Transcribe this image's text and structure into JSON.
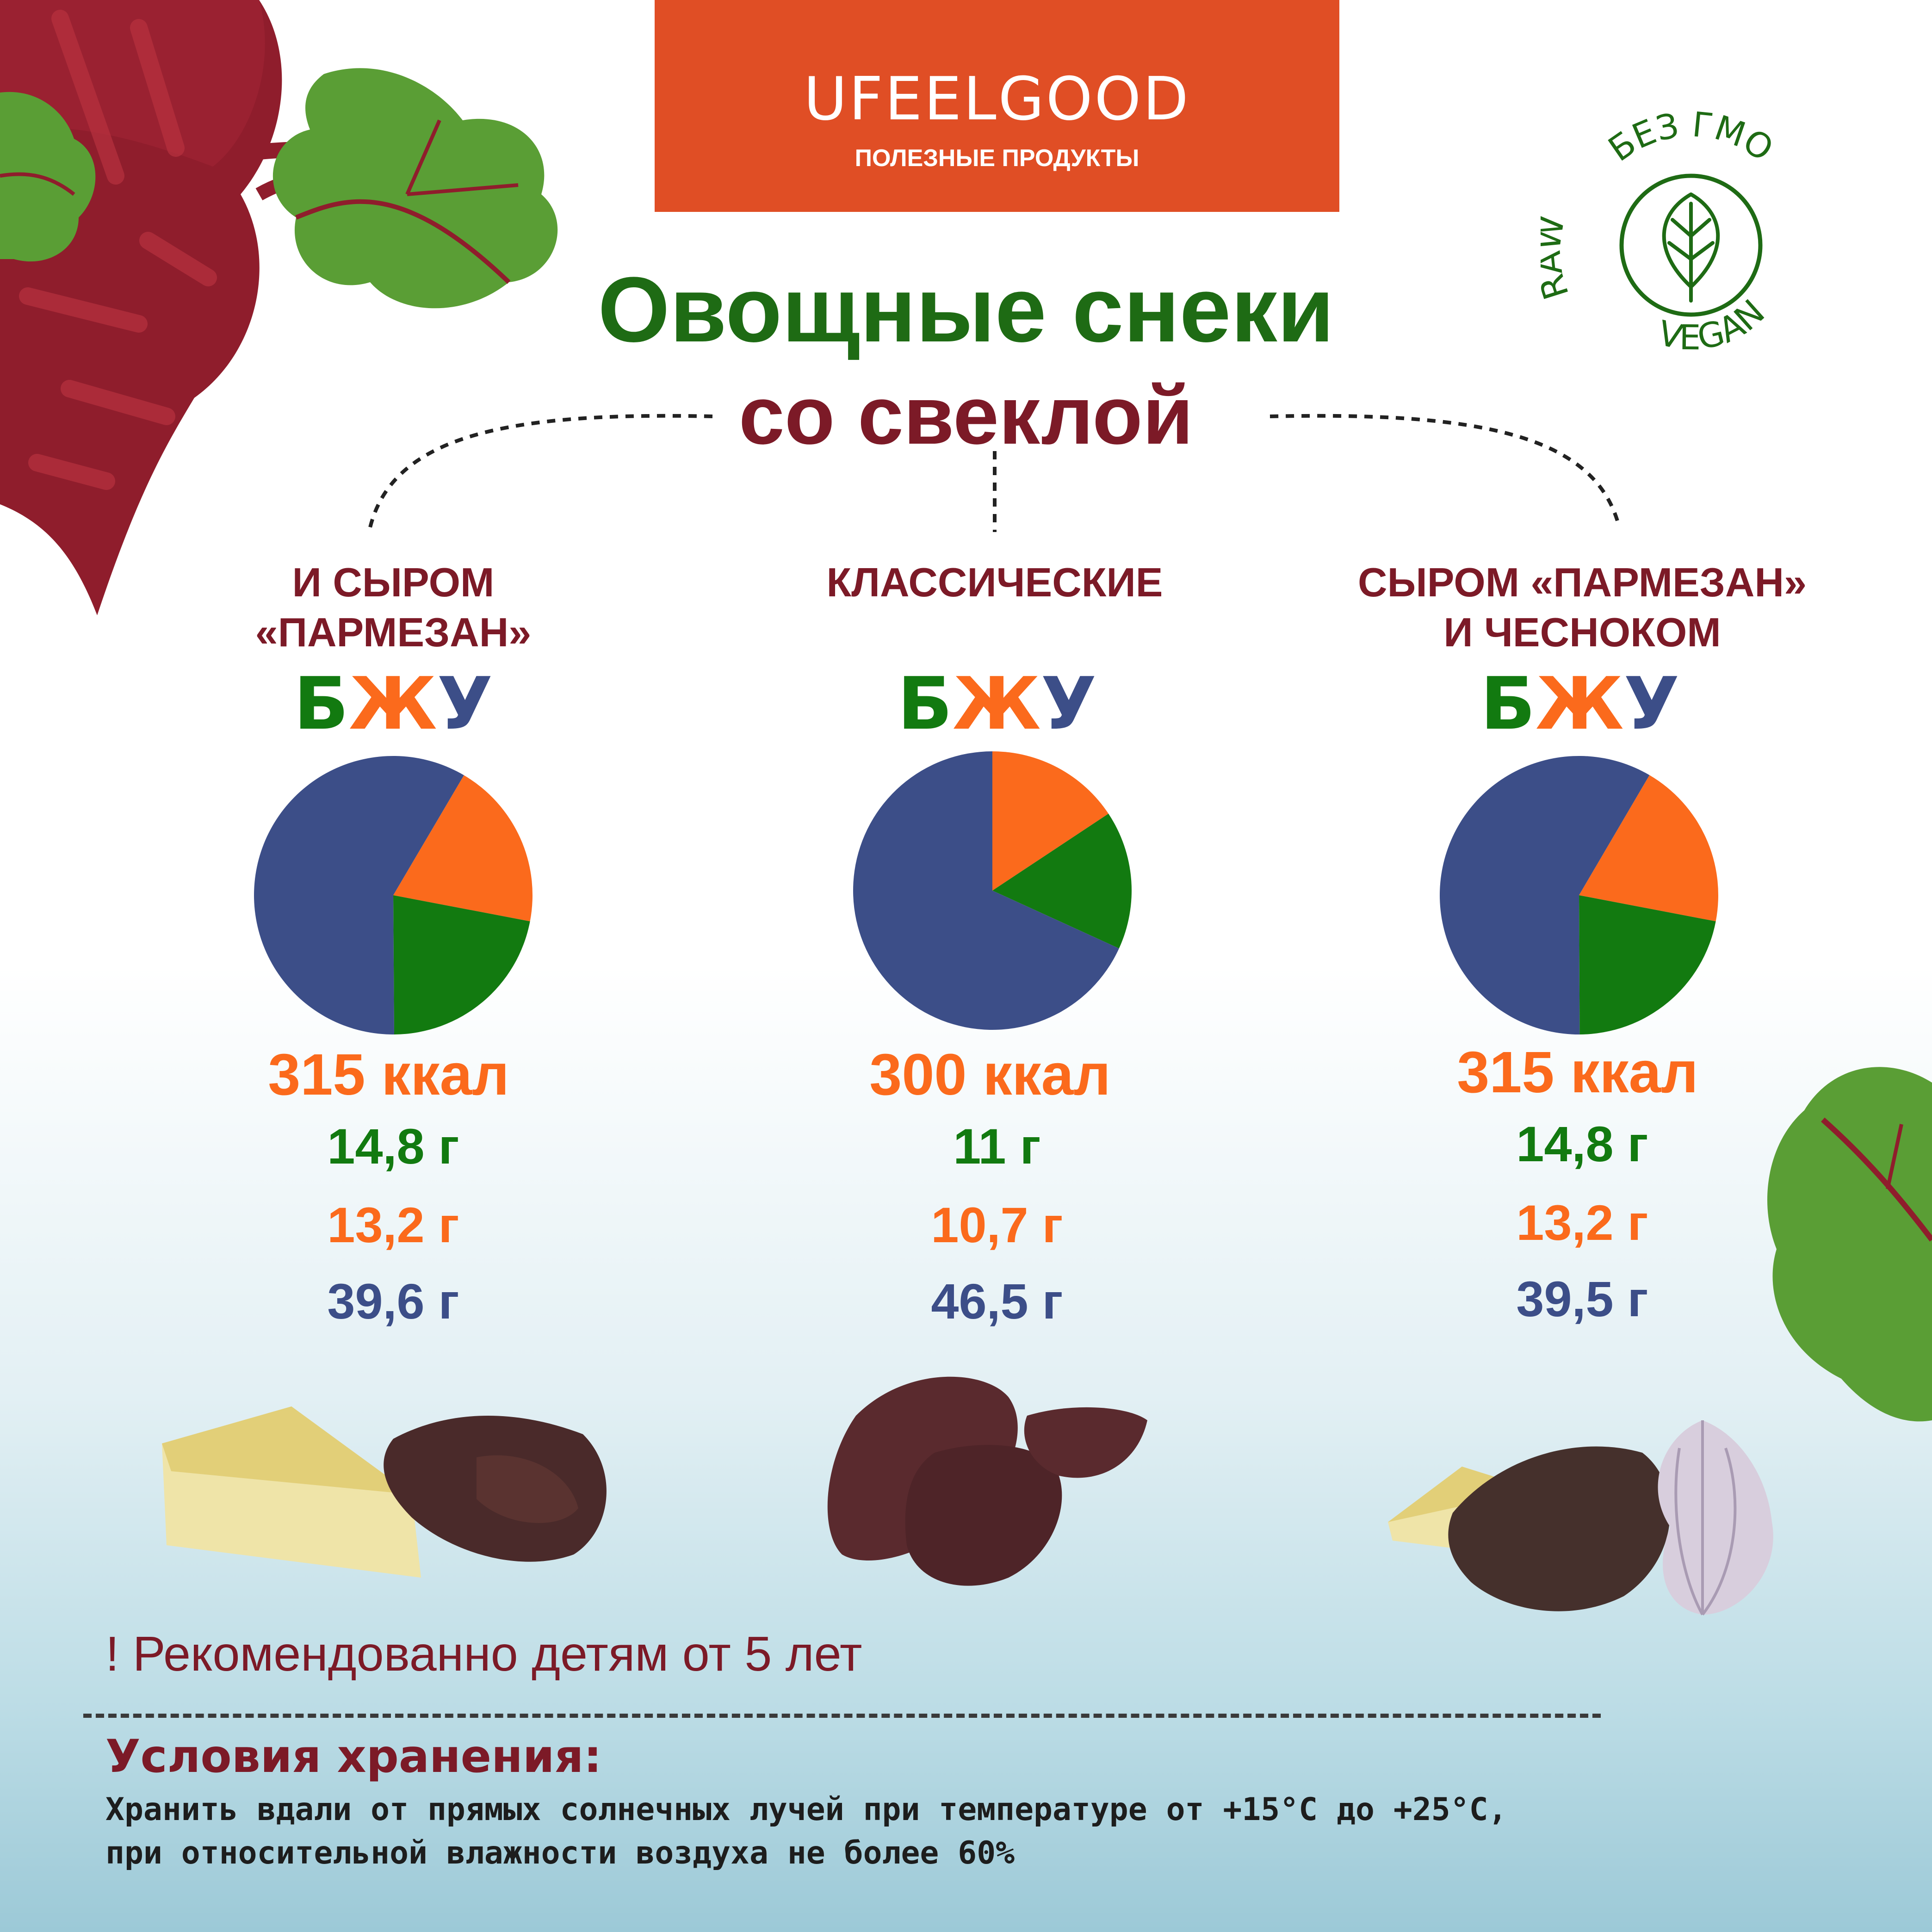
{
  "brand": {
    "name": "UFEELGOOD",
    "tagline": "ПОЛЕЗНЫЕ ПРОДУКТЫ"
  },
  "badge": {
    "top_text": "БЕЗ ГМО",
    "left_text": "RAW",
    "bottom_text": "VEGAN",
    "icon": "leaf-icon"
  },
  "title": "Овощные снеки",
  "subtitle": "со свеклой",
  "legend": {
    "b": "Б",
    "zh": "Ж",
    "u": "У"
  },
  "colors": {
    "protein": "#127a10",
    "fat": "#fb6a1c",
    "carbs": "#3c4e88",
    "title": "#1e6b14",
    "accent": "#7c1a27",
    "brand": "#e04e25"
  },
  "variants": [
    {
      "label_lines": [
        "И СЫРОМ",
        "«ПАРМЕЗАН»"
      ],
      "kcal": "315 ккал",
      "protein": "14,8 г",
      "fat": "13,2 г",
      "carbs": "39,6 г"
    },
    {
      "label_lines": [
        "КЛАССИЧЕСКИЕ",
        ""
      ],
      "kcal": "300 ккал",
      "protein": "11 г",
      "fat": "10,7 г",
      "carbs": "46,5 г"
    },
    {
      "label_lines": [
        "СЫРОМ «ПАРМЕЗАН»",
        "И ЧЕСНОКОМ"
      ],
      "kcal": "315 ккал",
      "protein": "14,8 г",
      "fat": "13,2 г",
      "carbs": "39,5 г"
    }
  ],
  "chart_data": [
    {
      "type": "pie",
      "categories": [
        "Б",
        "Ж",
        "У"
      ],
      "values": [
        14.8,
        13.2,
        39.6
      ]
    },
    {
      "type": "pie",
      "categories": [
        "Б",
        "Ж",
        "У"
      ],
      "values": [
        11,
        10.7,
        46.5
      ]
    },
    {
      "type": "pie",
      "categories": [
        "Б",
        "Ж",
        "У"
      ],
      "values": [
        14.8,
        13.2,
        39.5
      ]
    }
  ],
  "note": "! Рекомендованно детям от 5 лет",
  "storage": {
    "title": "Условия хранения:",
    "line1": "Хранить вдали от прямых солнечных лучей при температуре от +15°C до +25°C,",
    "line2": "при относительной влажности воздуха не более 60%"
  }
}
